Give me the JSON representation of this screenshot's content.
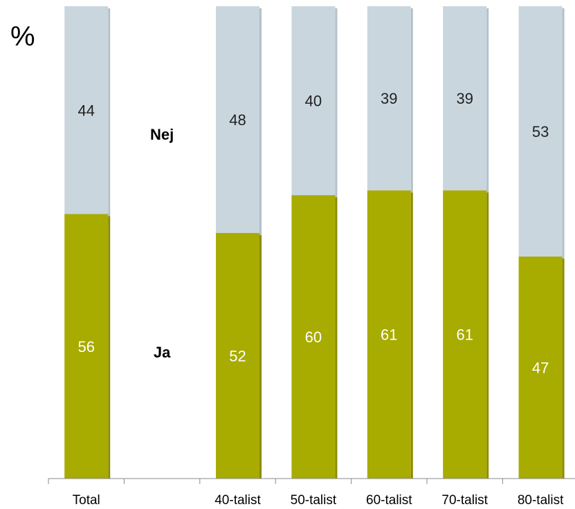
{
  "chart_data": {
    "type": "bar",
    "stacked": true,
    "unit_label": "%",
    "categories": [
      "Total",
      "",
      "40-talist",
      "50-talist",
      "60-talist",
      "70-talist",
      "80-talist"
    ],
    "series": [
      {
        "name": "Ja",
        "values": [
          56,
          null,
          52,
          60,
          61,
          61,
          47
        ]
      },
      {
        "name": "Nej",
        "values": [
          44,
          null,
          48,
          40,
          39,
          39,
          53
        ]
      }
    ],
    "ylim": [
      0,
      100
    ],
    "grid": false,
    "legend": "inline-middle",
    "colors": {
      "Ja": "#a8ab00",
      "Nej": "#c9d6de",
      "Ja_label": "#ffffff",
      "Nej_label": "#222222"
    }
  }
}
